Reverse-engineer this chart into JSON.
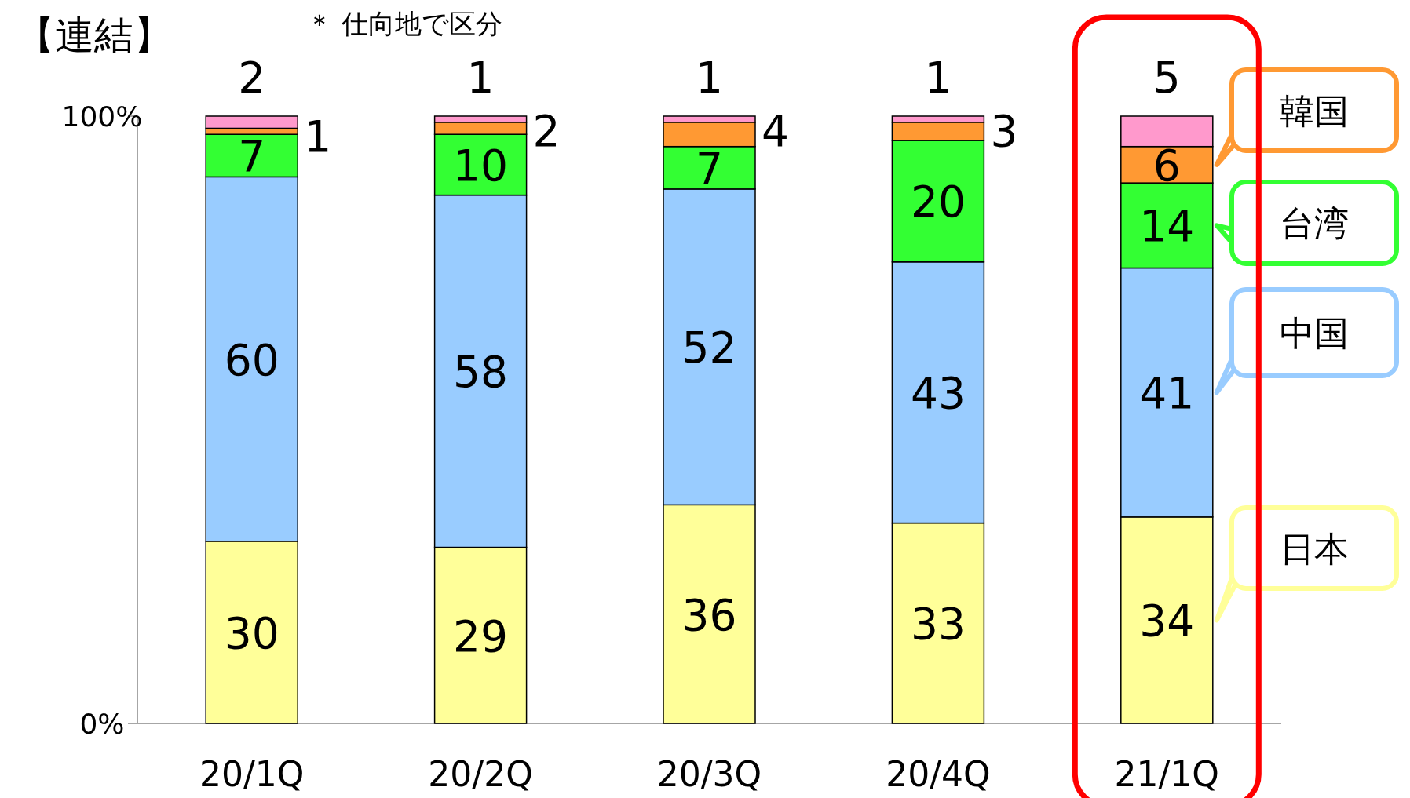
{
  "chart_data": {
    "type": "bar",
    "stacked": true,
    "data_labels": true,
    "title": "【連結】",
    "subtitle": "＊ 仕向地で区分",
    "categories": [
      "20/1Q",
      "20/2Q",
      "20/3Q",
      "20/4Q",
      "21/1Q"
    ],
    "ylim": [
      0,
      100
    ],
    "yticks": [
      {
        "value": 0,
        "label": "0%"
      },
      {
        "value": 100,
        "label": "100%"
      }
    ],
    "series": [
      {
        "name": "日本",
        "color": "#ffff99",
        "values": [
          30,
          29,
          36,
          33,
          34
        ]
      },
      {
        "name": "中国",
        "color": "#99ccff",
        "values": [
          60,
          58,
          52,
          43,
          41
        ]
      },
      {
        "name": "台湾",
        "color": "#33ff33",
        "values": [
          7,
          10,
          7,
          20,
          14
        ]
      },
      {
        "name": "韓国",
        "color": "#ff9933",
        "values": [
          1,
          2,
          4,
          3,
          6
        ]
      },
      {
        "color": "#ff99cc",
        "values": [
          2,
          1,
          1,
          1,
          5
        ]
      }
    ]
  }
}
